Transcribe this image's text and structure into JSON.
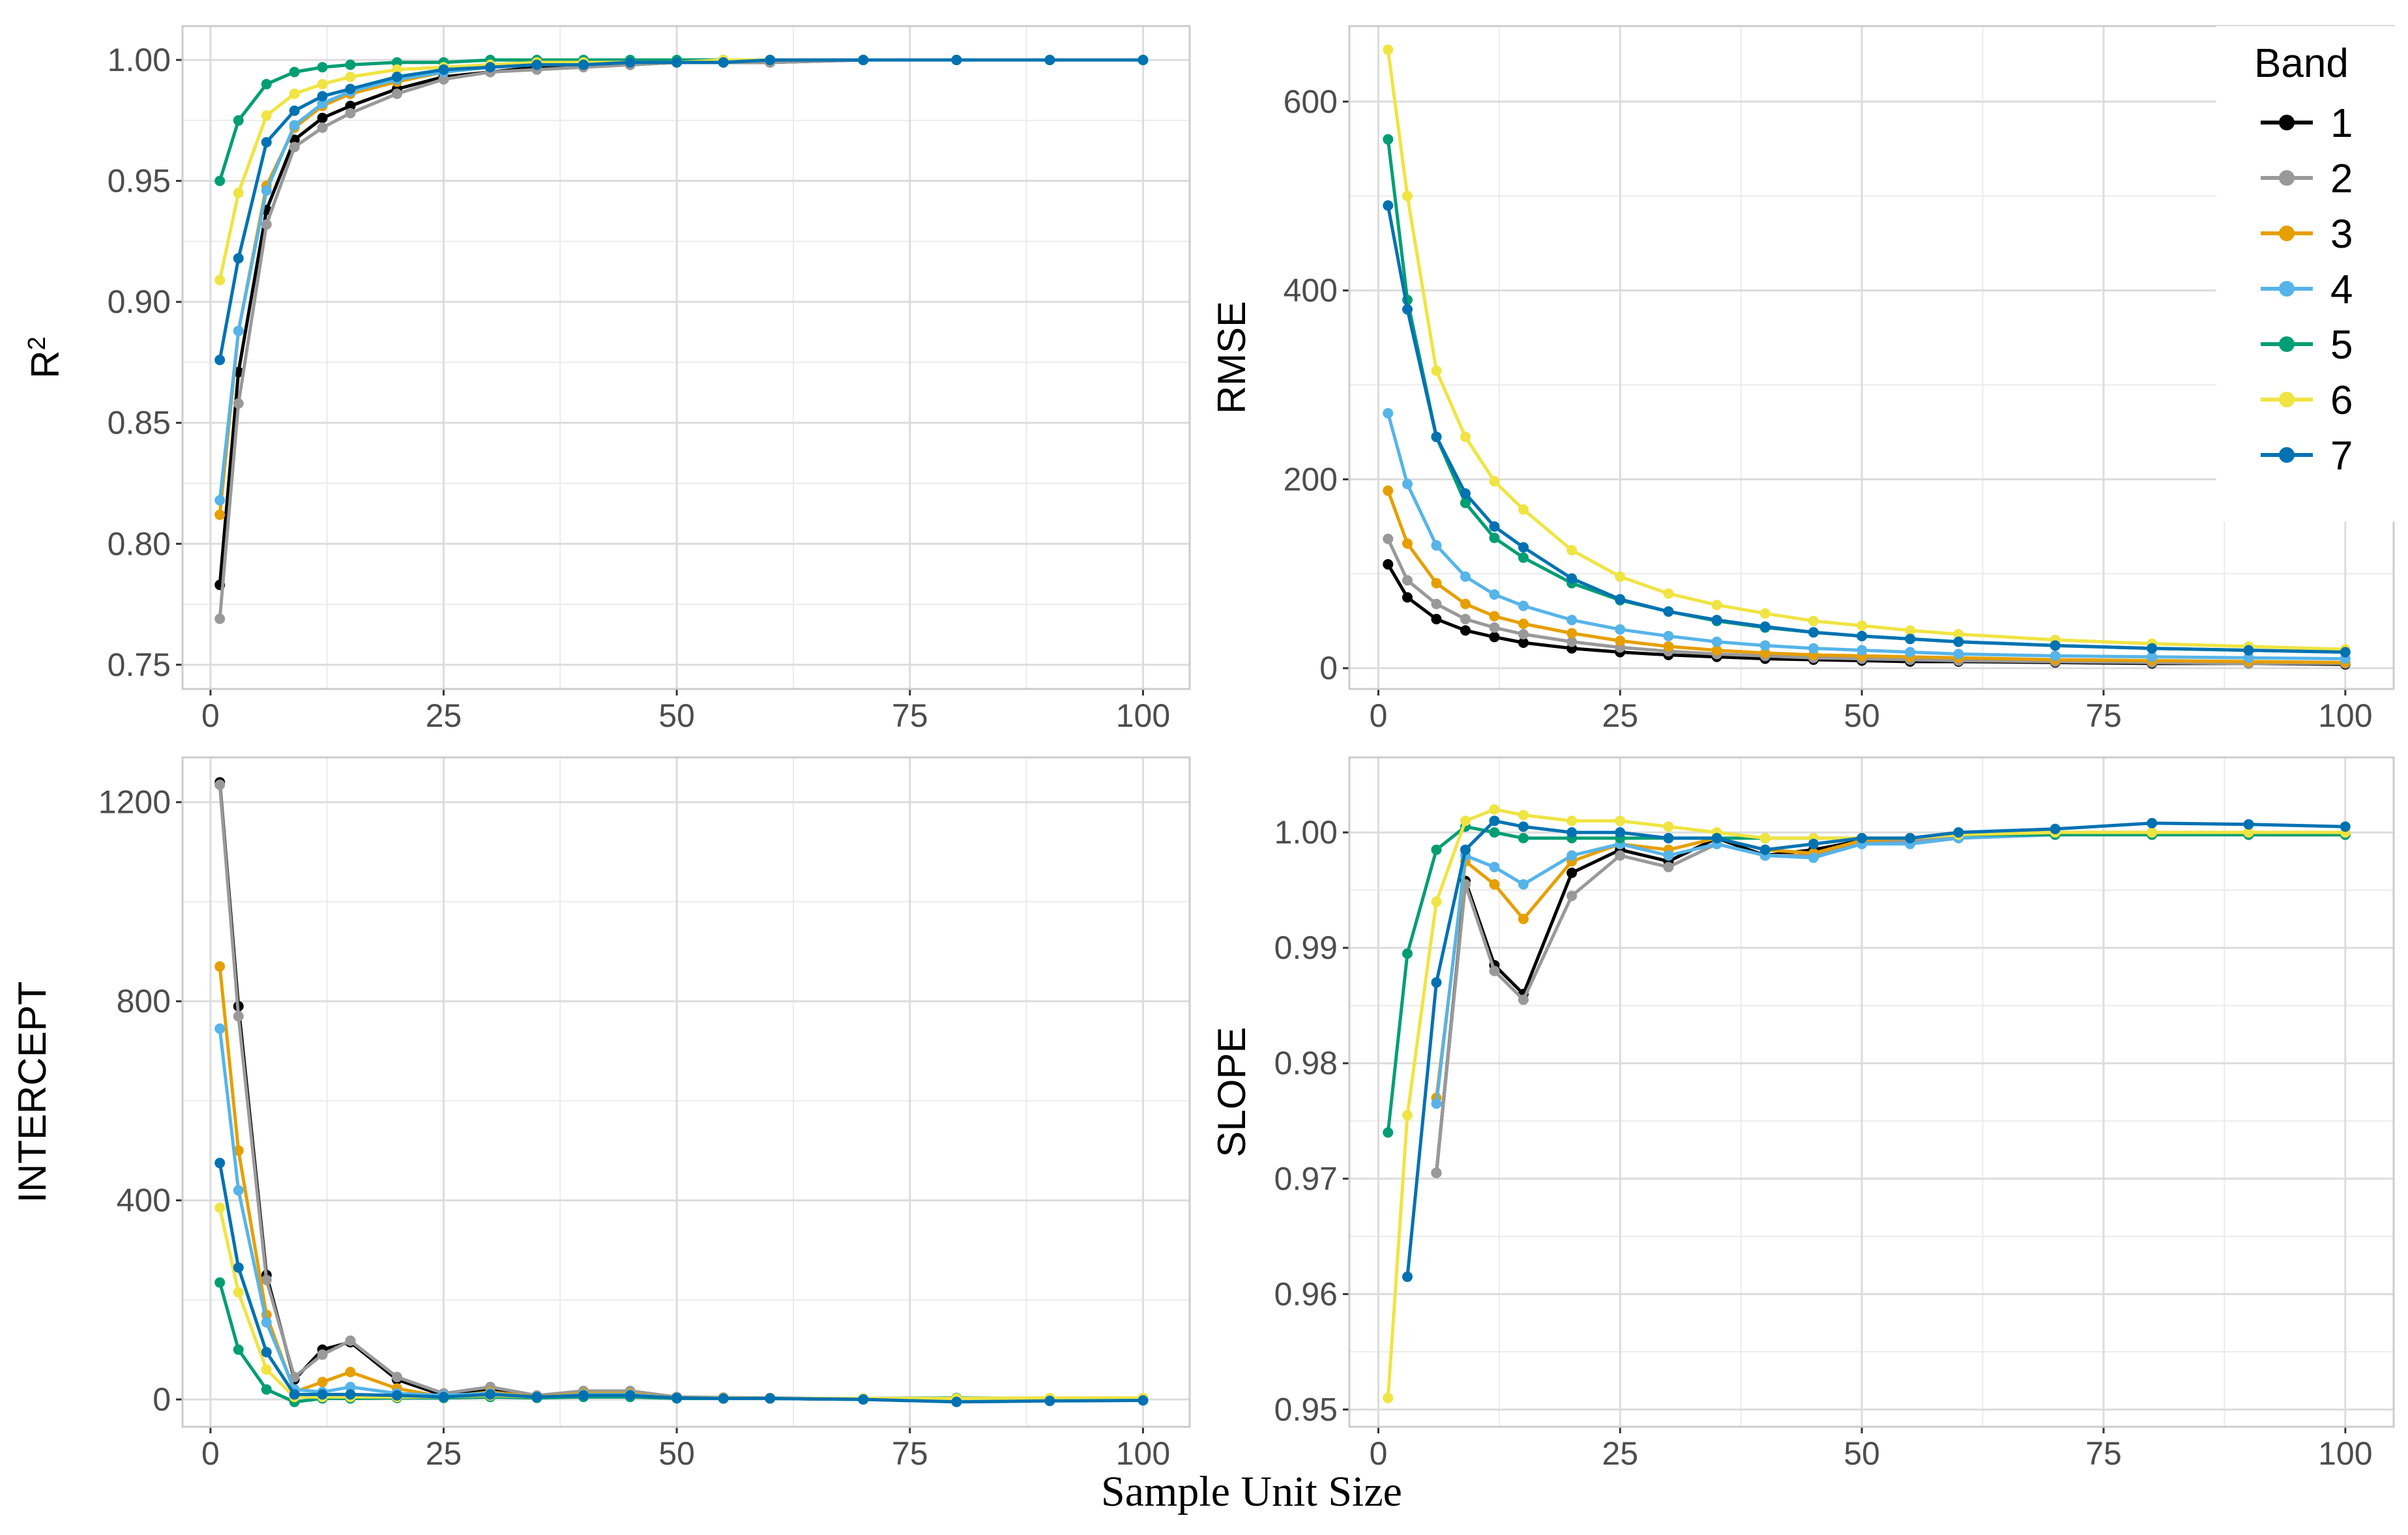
{
  "figure": {
    "x_axis_title": "Sample Unit Size"
  },
  "legend": {
    "title": "Band",
    "items": [
      "1",
      "2",
      "3",
      "4",
      "5",
      "6",
      "7"
    ]
  },
  "colors": {
    "band_1": "#000000",
    "band_2": "#999999",
    "band_3": "#E69F00",
    "band_4": "#56B4E9",
    "band_5": "#009E73",
    "band_6": "#F0E442",
    "band_7": "#0072B2",
    "grid": "#ebebeb",
    "panel_border": "#cccccc",
    "tick_label": "#4d4d4d"
  },
  "chart_data": [
    {
      "id": "r2",
      "type": "line",
      "ylabel": "R",
      "ylabel_superscript": "2",
      "xlim": [
        -3,
        105
      ],
      "ylim": [
        0.74,
        1.014
      ],
      "xticks": [
        0,
        25,
        50,
        75,
        100
      ],
      "xtick_labels": [
        "0",
        "25",
        "50",
        "75",
        "100"
      ],
      "yticks": [
        0.75,
        0.8,
        0.85,
        0.9,
        0.95,
        1.0
      ],
      "ytick_labels": [
        "0.75",
        "0.80",
        "0.85",
        "0.90",
        "0.95",
        "1.00"
      ],
      "x": [
        1,
        3,
        6,
        9,
        12,
        15,
        20,
        25,
        30,
        35,
        40,
        45,
        50,
        55,
        60,
        70,
        80,
        90,
        100
      ],
      "series": [
        {
          "name": "1",
          "values": [
            0.783,
            0.871,
            0.938,
            0.967,
            0.976,
            0.981,
            0.988,
            0.993,
            0.995,
            0.997,
            0.998,
            0.998,
            0.999,
            0.999,
            0.999,
            1.0,
            1.0,
            1.0,
            1.0
          ]
        },
        {
          "name": "2",
          "values": [
            0.769,
            0.858,
            0.932,
            0.964,
            0.972,
            0.978,
            0.986,
            0.992,
            0.995,
            0.996,
            0.997,
            0.998,
            0.999,
            0.999,
            0.999,
            1.0,
            1.0,
            1.0,
            1.0
          ]
        },
        {
          "name": "3",
          "values": [
            0.812,
            0.888,
            0.948,
            0.972,
            0.981,
            0.986,
            0.991,
            0.995,
            0.997,
            0.998,
            0.998,
            0.999,
            0.999,
            0.999,
            1.0,
            1.0,
            1.0,
            1.0,
            1.0
          ]
        },
        {
          "name": "4",
          "values": [
            0.818,
            0.888,
            0.946,
            0.973,
            0.982,
            0.987,
            0.992,
            0.995,
            0.997,
            0.998,
            0.999,
            0.999,
            0.999,
            0.999,
            1.0,
            1.0,
            1.0,
            1.0,
            1.0
          ]
        },
        {
          "name": "5",
          "values": [
            0.95,
            0.975,
            0.99,
            0.995,
            0.997,
            0.998,
            0.999,
            0.999,
            1.0,
            1.0,
            1.0,
            1.0,
            1.0,
            1.0,
            1.0,
            1.0,
            1.0,
            1.0,
            1.0
          ]
        },
        {
          "name": "6",
          "values": [
            0.909,
            0.945,
            0.977,
            0.986,
            0.99,
            0.993,
            0.996,
            0.997,
            0.998,
            0.999,
            0.999,
            0.999,
            0.999,
            1.0,
            1.0,
            1.0,
            1.0,
            1.0,
            1.0
          ]
        },
        {
          "name": "7",
          "values": [
            0.876,
            0.918,
            0.966,
            0.979,
            0.985,
            0.988,
            0.993,
            0.996,
            0.997,
            0.998,
            0.998,
            0.999,
            0.999,
            0.999,
            1.0,
            1.0,
            1.0,
            1.0,
            1.0
          ]
        }
      ]
    },
    {
      "id": "rmse",
      "type": "line",
      "ylabel": "RMSE",
      "xlim": [
        -3,
        105
      ],
      "ylim": [
        -22,
        680
      ],
      "xticks": [
        0,
        25,
        50,
        75,
        100
      ],
      "xtick_labels": [
        "0",
        "25",
        "50",
        "75",
        "100"
      ],
      "yticks": [
        0,
        200,
        400,
        600
      ],
      "ytick_labels": [
        "0",
        "200",
        "400",
        "600"
      ],
      "x": [
        1,
        3,
        6,
        9,
        12,
        15,
        20,
        25,
        30,
        35,
        40,
        45,
        50,
        55,
        60,
        70,
        80,
        90,
        100
      ],
      "series": [
        {
          "name": "1",
          "values": [
            110,
            75,
            52,
            40,
            33,
            27,
            21,
            17,
            14,
            12,
            10,
            9,
            8,
            7,
            7,
            6,
            5,
            5,
            4
          ]
        },
        {
          "name": "2",
          "values": [
            137,
            93,
            68,
            52,
            43,
            36,
            28,
            22,
            18,
            15,
            13,
            11,
            10,
            9,
            8,
            7,
            6,
            5,
            5
          ]
        },
        {
          "name": "3",
          "values": [
            188,
            132,
            90,
            68,
            55,
            47,
            37,
            29,
            23,
            19,
            16,
            14,
            13,
            12,
            11,
            9,
            8,
            7,
            6
          ]
        },
        {
          "name": "4",
          "values": [
            270,
            195,
            130,
            97,
            78,
            66,
            51,
            41,
            34,
            28,
            24,
            21,
            19,
            17,
            15,
            13,
            12,
            11,
            10
          ]
        },
        {
          "name": "5",
          "values": [
            560,
            390,
            245,
            175,
            138,
            117,
            90,
            72,
            60,
            50,
            43,
            38,
            34,
            31,
            28,
            24,
            21,
            19,
            17
          ]
        },
        {
          "name": "6",
          "values": [
            655,
            500,
            315,
            245,
            198,
            168,
            125,
            97,
            79,
            67,
            58,
            50,
            45,
            40,
            36,
            30,
            26,
            23,
            20
          ]
        },
        {
          "name": "7",
          "values": [
            490,
            380,
            245,
            185,
            150,
            128,
            95,
            73,
            60,
            51,
            44,
            38,
            34,
            31,
            28,
            24,
            21,
            19,
            17
          ]
        }
      ]
    },
    {
      "id": "intercept",
      "type": "line",
      "ylabel": "INTERCEPT",
      "xlim": [
        -3,
        105
      ],
      "ylim": [
        -55,
        1290
      ],
      "xticks": [
        0,
        25,
        50,
        75,
        100
      ],
      "xtick_labels": [
        "0",
        "25",
        "50",
        "75",
        "100"
      ],
      "yticks": [
        0,
        400,
        800,
        1200
      ],
      "ytick_labels": [
        "0",
        "400",
        "800",
        "1200"
      ],
      "x": [
        1,
        3,
        6,
        9,
        12,
        15,
        20,
        25,
        30,
        35,
        40,
        45,
        50,
        55,
        60,
        70,
        80,
        90,
        100
      ],
      "series": [
        {
          "name": "1",
          "values": [
            1240,
            790,
            250,
            40,
            100,
            115,
            40,
            8,
            20,
            5,
            15,
            15,
            3,
            2,
            2,
            0,
            0,
            0,
            0
          ]
        },
        {
          "name": "2",
          "values": [
            1235,
            770,
            240,
            45,
            90,
            118,
            45,
            12,
            25,
            8,
            17,
            17,
            5,
            4,
            3,
            1,
            0,
            0,
            0
          ]
        },
        {
          "name": "3",
          "values": [
            870,
            500,
            170,
            15,
            35,
            55,
            22,
            5,
            15,
            5,
            12,
            12,
            3,
            2,
            2,
            0,
            0,
            0,
            0
          ]
        },
        {
          "name": "4",
          "values": [
            745,
            420,
            155,
            20,
            15,
            25,
            12,
            8,
            12,
            4,
            10,
            10,
            3,
            2,
            2,
            0,
            0,
            0,
            0
          ]
        },
        {
          "name": "5",
          "values": [
            235,
            100,
            20,
            -5,
            2,
            2,
            3,
            3,
            5,
            3,
            5,
            5,
            2,
            2,
            2,
            2,
            3,
            2,
            2
          ]
        },
        {
          "name": "6",
          "values": [
            385,
            215,
            60,
            5,
            5,
            5,
            5,
            5,
            8,
            5,
            8,
            8,
            3,
            3,
            2,
            2,
            2,
            3,
            3
          ]
        },
        {
          "name": "7",
          "values": [
            475,
            265,
            95,
            10,
            10,
            10,
            8,
            5,
            10,
            5,
            8,
            8,
            3,
            2,
            2,
            0,
            -5,
            -3,
            -2
          ]
        }
      ]
    },
    {
      "id": "slope",
      "type": "line",
      "ylabel": "SLOPE",
      "xlim": [
        -3,
        105
      ],
      "ylim": [
        0.9485,
        1.0065
      ],
      "xticks": [
        0,
        25,
        50,
        75,
        100
      ],
      "xtick_labels": [
        "0",
        "25",
        "50",
        "75",
        "100"
      ],
      "yticks": [
        0.95,
        0.96,
        0.97,
        0.98,
        0.99,
        1.0
      ],
      "ytick_labels": [
        "0.95",
        "0.96",
        "0.97",
        "0.98",
        "0.99",
        "1.00"
      ],
      "x": [
        1,
        3,
        6,
        9,
        12,
        15,
        20,
        25,
        30,
        35,
        40,
        45,
        50,
        55,
        60,
        70,
        80,
        90,
        100
      ],
      "series": [
        {
          "name": "1",
          "values": [
            null,
            null,
            0.9705,
            0.9958,
            0.9885,
            0.986,
            0.9965,
            0.9985,
            0.9975,
            0.9995,
            0.998,
            0.9985,
            0.9993,
            0.9995,
            0.9998,
            1.0,
            1.0,
            0.9998,
            0.9998
          ]
        },
        {
          "name": "2",
          "values": [
            null,
            null,
            0.9705,
            0.9955,
            0.988,
            0.9855,
            0.9945,
            0.998,
            0.997,
            0.999,
            0.998,
            0.998,
            0.999,
            0.9993,
            0.9995,
            0.9998,
            0.9998,
            0.9998,
            0.9998
          ]
        },
        {
          "name": "3",
          "values": [
            null,
            null,
            0.977,
            0.9975,
            0.9955,
            0.9925,
            0.9975,
            0.999,
            0.9985,
            0.9995,
            0.9985,
            0.9982,
            0.9993,
            0.9995,
            0.9998,
            1.0,
            1.0,
            1.0,
            1.0
          ]
        },
        {
          "name": "4",
          "values": [
            null,
            null,
            0.9765,
            0.998,
            0.997,
            0.9955,
            0.998,
            0.999,
            0.998,
            0.999,
            0.998,
            0.9978,
            0.999,
            0.999,
            0.9995,
            0.9998,
            0.9998,
            0.9998,
            0.9998
          ]
        },
        {
          "name": "5",
          "values": [
            0.974,
            0.9895,
            0.9985,
            1.0005,
            1.0,
            0.9995,
            0.9995,
            0.9995,
            0.9995,
            0.9995,
            0.9995,
            0.9995,
            0.9995,
            0.9995,
            0.9998,
            0.9998,
            0.9998,
            0.9998,
            0.9998
          ]
        },
        {
          "name": "6",
          "values": [
            0.951,
            0.9755,
            0.994,
            1.001,
            1.002,
            1.0015,
            1.001,
            1.001,
            1.0005,
            1.0,
            0.9995,
            0.9995,
            0.9995,
            0.9995,
            0.9998,
            1.0,
            1.0,
            1.0,
            1.0
          ]
        },
        {
          "name": "7",
          "values": [
            null,
            0.9615,
            0.987,
            0.9985,
            1.001,
            1.0005,
            1.0,
            1.0,
            0.9995,
            0.9995,
            0.9985,
            0.999,
            0.9995,
            0.9995,
            1.0,
            1.0003,
            1.0008,
            1.0007,
            1.0005
          ]
        }
      ]
    }
  ]
}
